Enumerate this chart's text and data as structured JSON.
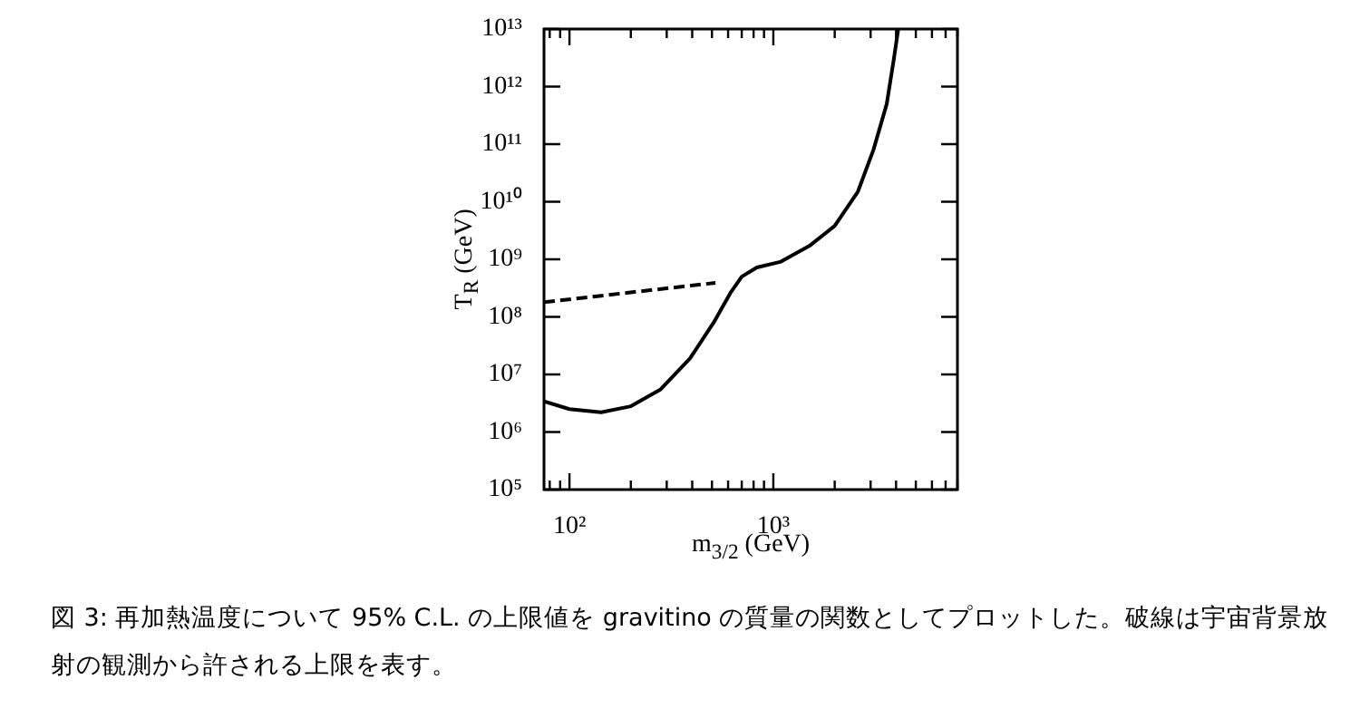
{
  "chart_data": {
    "type": "line",
    "xlabel": "m$_{3/2}$ (GeV)",
    "ylabel": "T$_{R}$ (GeV)",
    "log": "xy",
    "grid": false,
    "legend": false,
    "marker": "none",
    "xlim": [
      75,
      8000
    ],
    "xticks": [
      {
        "value": 80,
        "label": null
      },
      {
        "value": 90,
        "label": null
      },
      {
        "value": 100,
        "label": "10²"
      },
      {
        "value": 200,
        "label": null
      },
      {
        "value": 300,
        "label": null
      },
      {
        "value": 400,
        "label": null
      },
      {
        "value": 500,
        "label": null
      },
      {
        "value": 600,
        "label": null
      },
      {
        "value": 700,
        "label": null
      },
      {
        "value": 800,
        "label": null
      },
      {
        "value": 900,
        "label": null
      },
      {
        "value": 1000,
        "label": "10³"
      },
      {
        "value": 2000,
        "label": null
      },
      {
        "value": 3000,
        "label": null
      },
      {
        "value": 4000,
        "label": null
      },
      {
        "value": 5000,
        "label": null
      },
      {
        "value": 6000,
        "label": null
      },
      {
        "value": 7000,
        "label": null
      },
      {
        "value": 8000,
        "label": null
      }
    ],
    "ylim": [
      100000.0,
      10000000000000.0
    ],
    "yticks": [
      {
        "value": 100000.0,
        "label": "10⁵"
      },
      {
        "value": 1000000.0,
        "label": "10⁶"
      },
      {
        "value": 10000000.0,
        "label": "10⁷"
      },
      {
        "value": 100000000.0,
        "label": "10⁸"
      },
      {
        "value": 1000000000.0,
        "label": "10⁹"
      },
      {
        "value": 10000000000.0,
        "label": "10¹⁰"
      },
      {
        "value": 100000000000.0,
        "label": "10¹¹"
      },
      {
        "value": 1000000000000.0,
        "label": "10¹²"
      },
      {
        "value": 10000000000000.0,
        "label": "10¹³"
      }
    ],
    "series": [
      {
        "type": "line",
        "color": "#000000",
        "line_style": "solid",
        "x": [
          75,
          100,
          143,
          200,
          280,
          390,
          510,
          620,
          700,
          830,
          1080,
          1500,
          2000,
          2600,
          3100,
          3600,
          3900,
          4100
        ],
        "values": [
          3400000.0,
          2500000.0,
          2200000.0,
          2800000.0,
          5500000.0,
          19000000.0,
          80000000.0,
          270000000.0,
          500000000.0,
          720000000.0,
          900000000.0,
          1700000000.0,
          3800000000.0,
          15000000000.0,
          80000000000.0,
          500000000000.0,
          3000000000000.0,
          10000000000000.0
        ]
      },
      {
        "type": "line",
        "color": "#000000",
        "line_style": "dashed",
        "x": [
          75,
          520
        ],
        "values": [
          180000000.0,
          390000000.0
        ]
      }
    ],
    "annotations": [
      "図 3: 再加熱温度について 95% C.L. の上限値を gravitino の質量の関数としてプロットした。破線は宇宙背景放射の観測から許される上限を表す。"
    ]
  }
}
